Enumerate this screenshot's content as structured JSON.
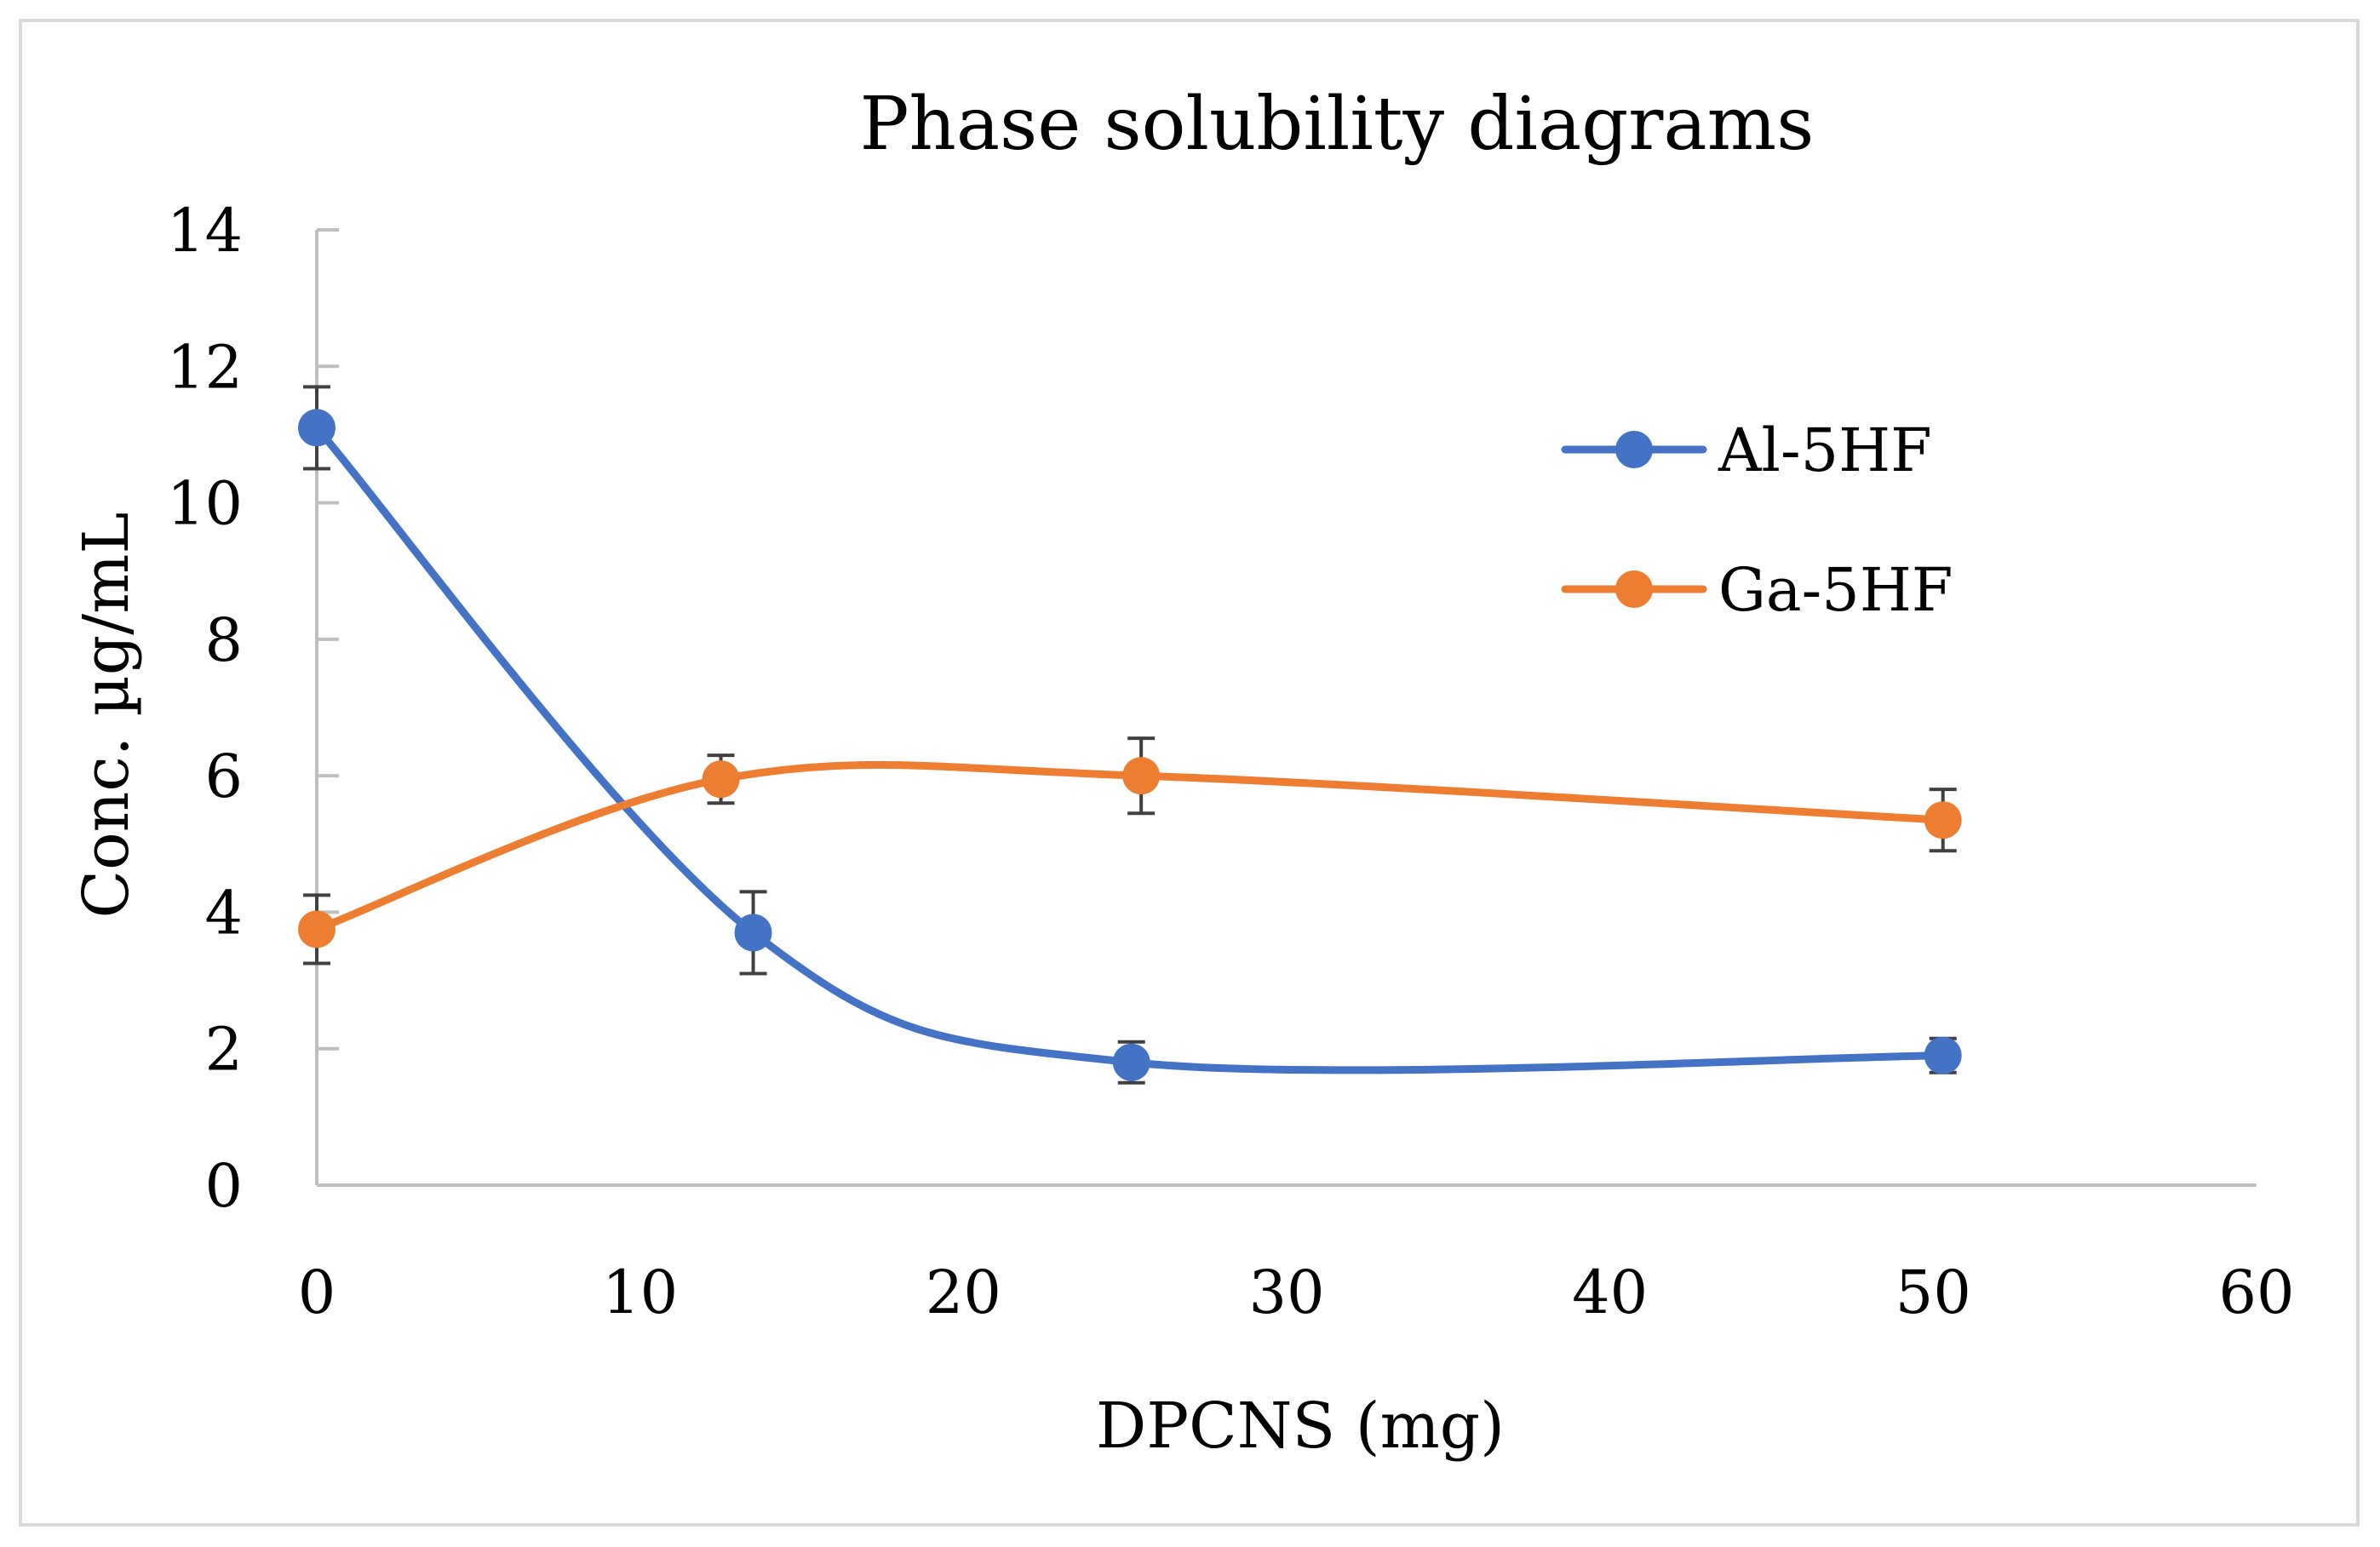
{
  "chart_data": {
    "type": "line",
    "title": "Phase solubility diagrams",
    "xlabel": "DPCNS (mg)",
    "ylabel": "Conc. µg/mL",
    "xlim": [
      0,
      60
    ],
    "ylim": [
      0,
      14
    ],
    "xticks": [
      0,
      10,
      20,
      30,
      40,
      50,
      60
    ],
    "yticks": [
      0,
      2,
      4,
      6,
      8,
      10,
      12,
      14
    ],
    "xtick_labels": [
      "0",
      "10",
      "20",
      "30",
      "40",
      "50",
      "60"
    ],
    "ytick_labels": [
      "0",
      "2",
      "4",
      "6",
      "8",
      "10",
      "12",
      "14"
    ],
    "grid": false,
    "smooth": true,
    "legend_position": "top-right",
    "series": [
      {
        "name": "Al-5HF",
        "color": "#4472c4",
        "x": [
          0,
          13.5,
          25.2,
          50.3
        ],
        "y": [
          11.1,
          3.7,
          1.8,
          1.9
        ],
        "error": [
          0.6,
          0.6,
          0.3,
          0.25
        ]
      },
      {
        "name": "Ga-5HF",
        "color": "#ed7d31",
        "x": [
          0,
          12.5,
          25.5,
          50.3
        ],
        "y": [
          3.75,
          5.95,
          6.0,
          5.35
        ],
        "error": [
          0.5,
          0.35,
          0.55,
          0.45
        ]
      }
    ],
    "colors": {
      "axis": "#bfbfbf",
      "error_bar": "#404040",
      "frame": "#d9d9d9"
    }
  }
}
